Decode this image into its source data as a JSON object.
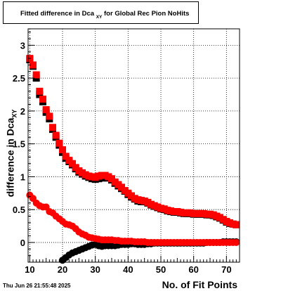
{
  "title": {
    "main": "Fitted difference in Dca",
    "sub": "XY",
    "suffix": " for Global Rec Pion NoHits"
  },
  "timestamp": "Thu Jun 26 21:55:48 2025",
  "chart_data": {
    "type": "scatter",
    "xlabel": "No. of Fit Points",
    "ylabel": "difference in Dca",
    "ylabel_sub": "XY",
    "xlim": [
      9.5,
      74
    ],
    "ylim": [
      -0.3,
      3.25
    ],
    "x_ticks": [
      10,
      20,
      30,
      40,
      50,
      60,
      70
    ],
    "y_ticks": [
      0,
      0.5,
      1,
      1.5,
      2,
      2.5,
      3
    ],
    "y_tick_labels": [
      "0",
      "0.5",
      "1",
      "1.5",
      "2",
      "2.5",
      "3"
    ],
    "grid": true,
    "series": [
      {
        "color": "#000000",
        "marker": "square",
        "x": [
          10,
          11,
          12,
          13,
          14,
          15,
          16,
          17,
          18,
          19,
          20,
          21,
          22,
          23,
          24,
          25,
          26,
          27,
          28,
          29,
          30,
          31,
          32,
          33,
          34,
          35,
          36,
          37,
          38,
          39,
          40,
          41,
          42,
          43,
          44,
          45,
          46,
          47,
          48,
          49,
          50,
          51,
          52,
          53,
          54,
          55,
          56,
          57,
          58,
          59,
          60,
          61,
          62,
          63,
          64,
          65,
          66,
          67,
          68,
          69,
          70,
          71,
          72,
          73
        ],
        "y": [
          2.78,
          2.68,
          2.5,
          2.25,
          2.14,
          1.98,
          1.88,
          1.72,
          1.6,
          1.48,
          1.37,
          1.28,
          1.23,
          1.18,
          1.12,
          1.07,
          1.04,
          1.01,
          0.99,
          0.97,
          0.96,
          0.97,
          0.98,
          1.0,
          0.98,
          0.95,
          0.9,
          0.86,
          0.82,
          0.78,
          0.73,
          0.69,
          0.66,
          0.63,
          0.62,
          0.62,
          0.6,
          0.57,
          0.55,
          0.53,
          0.51,
          0.5,
          0.48,
          0.47,
          0.46,
          0.46,
          0.45,
          0.44,
          0.44,
          0.44,
          0.43,
          0.43,
          0.43,
          0.43,
          0.42,
          0.42,
          0.41,
          0.39,
          0.37,
          0.34,
          0.31,
          0.29,
          0.28,
          0.27
        ]
      },
      {
        "color": "#ff0000",
        "marker": "square",
        "x": [
          10,
          11,
          12,
          13,
          14,
          15,
          16,
          17,
          18,
          19,
          20,
          21,
          22,
          23,
          24,
          25,
          26,
          27,
          28,
          29,
          30,
          31,
          32,
          33,
          34,
          35,
          36,
          37,
          38,
          39,
          40,
          41,
          42,
          43,
          44,
          45,
          46,
          47,
          48,
          49,
          50,
          51,
          52,
          53,
          54,
          55,
          56,
          57,
          58,
          59,
          60,
          61,
          62,
          63,
          64,
          65,
          66,
          67,
          68,
          69,
          70,
          71,
          72,
          73
        ],
        "y": [
          2.8,
          2.7,
          2.55,
          2.3,
          2.18,
          2.02,
          1.92,
          1.75,
          1.63,
          1.51,
          1.41,
          1.31,
          1.25,
          1.2,
          1.14,
          1.09,
          1.06,
          1.03,
          1.01,
          1.0,
          0.99,
          1.01,
          1.02,
          1.02,
          1.0,
          0.97,
          0.92,
          0.88,
          0.84,
          0.79,
          0.75,
          0.71,
          0.67,
          0.65,
          0.64,
          0.63,
          0.61,
          0.58,
          0.56,
          0.54,
          0.52,
          0.51,
          0.49,
          0.48,
          0.47,
          0.47,
          0.46,
          0.45,
          0.45,
          0.45,
          0.44,
          0.44,
          0.44,
          0.44,
          0.43,
          0.43,
          0.42,
          0.4,
          0.38,
          0.35,
          0.32,
          0.3,
          0.28,
          0.27
        ]
      },
      {
        "color": "#000000",
        "marker": "circle",
        "x": [
          20,
          21,
          22,
          23,
          24,
          25,
          26,
          27,
          28,
          29,
          30,
          31,
          32,
          33,
          34,
          35,
          36,
          37,
          38,
          39,
          40,
          41,
          42,
          43,
          44,
          45,
          46,
          47,
          48,
          49,
          50,
          51,
          52,
          53,
          54,
          55,
          56,
          57,
          58,
          59,
          60,
          61,
          62,
          63,
          64,
          65,
          66,
          67,
          68,
          69,
          70,
          71,
          72,
          73
        ],
        "y": [
          -0.27,
          -0.23,
          -0.19,
          -0.16,
          -0.14,
          -0.12,
          -0.1,
          -0.08,
          -0.06,
          -0.04,
          -0.03,
          -0.05,
          -0.06,
          -0.05,
          -0.05,
          -0.05,
          -0.05,
          -0.04,
          -0.03,
          -0.03,
          -0.03,
          -0.02,
          -0.02,
          -0.03,
          -0.03,
          -0.03,
          -0.02,
          -0.02,
          -0.01,
          -0.01,
          -0.01,
          -0.01,
          -0.01,
          -0.01,
          -0.01,
          -0.01,
          -0.01,
          -0.01,
          -0.01,
          -0.01,
          -0.01,
          -0.01,
          -0.01,
          -0.01,
          0.0,
          0.0,
          0.0,
          0.0,
          0.0,
          0.01,
          0.01,
          0.01,
          0.01,
          0.01
        ]
      },
      {
        "color": "#ff0000",
        "marker": "circle",
        "x": [
          10,
          11,
          12,
          13,
          14,
          15,
          16,
          17,
          18,
          19,
          20,
          21,
          22,
          23,
          24,
          25,
          26,
          27,
          28,
          29,
          30,
          31,
          32,
          33,
          34,
          35,
          36,
          37,
          38,
          39,
          40,
          41,
          42,
          43,
          44,
          45,
          46,
          47,
          48,
          49,
          50,
          51,
          52,
          53,
          54,
          55,
          56,
          57,
          58,
          59,
          60,
          61,
          62,
          63,
          64,
          65,
          66,
          67,
          68,
          69,
          70,
          71,
          72,
          73
        ],
        "y": [
          0.72,
          0.67,
          0.6,
          0.56,
          0.54,
          0.54,
          0.47,
          0.45,
          0.4,
          0.36,
          0.32,
          0.28,
          0.27,
          0.25,
          0.21,
          0.16,
          0.13,
          0.11,
          0.08,
          0.07,
          0.06,
          0.05,
          0.04,
          0.04,
          0.04,
          0.04,
          0.03,
          0.03,
          0.02,
          0.02,
          0.02,
          0.02,
          0.01,
          0.01,
          0.01,
          0.01,
          0.0,
          0.0,
          0.0,
          0.0,
          0.0,
          0.0,
          0.0,
          0.0,
          0.0,
          0.0,
          0.0,
          0.0,
          0.0,
          0.0,
          0.0,
          0.0,
          0.0,
          0.0,
          0.0,
          0.0,
          0.0,
          0.0,
          0.0,
          0.0,
          0.0,
          0.0,
          0.0,
          0.0
        ]
      }
    ]
  }
}
